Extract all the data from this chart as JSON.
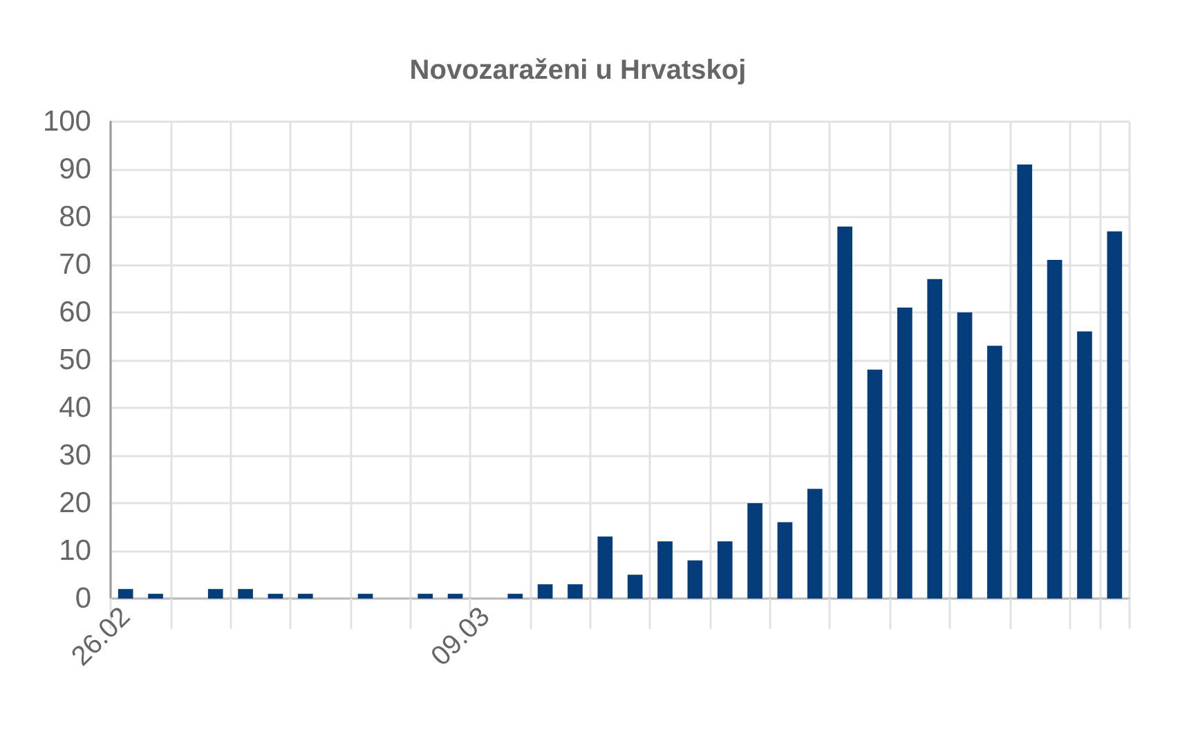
{
  "chart_data": {
    "type": "bar",
    "title": "Novozaraženi u Hrvatskoj",
    "categories": [
      "26.02",
      null,
      null,
      null,
      null,
      null,
      null,
      null,
      null,
      null,
      null,
      null,
      "09.03",
      null,
      null,
      null,
      null,
      null,
      null,
      null,
      null,
      null,
      null,
      null,
      null,
      null,
      null,
      null,
      null,
      null,
      null,
      null,
      null,
      null
    ],
    "values": [
      2,
      1,
      0,
      2,
      2,
      1,
      1,
      0,
      1,
      0,
      1,
      1,
      0,
      1,
      3,
      3,
      13,
      5,
      12,
      8,
      12,
      20,
      16,
      23,
      78,
      48,
      61,
      67,
      60,
      53,
      91,
      71,
      56,
      77
    ],
    "color": "#053d7b",
    "ylim": [
      0,
      100
    ],
    "yticks": [
      0,
      10,
      20,
      30,
      40,
      50,
      60,
      70,
      80,
      90,
      100
    ],
    "grid": true
  }
}
